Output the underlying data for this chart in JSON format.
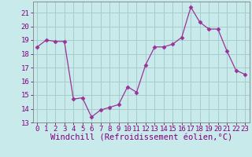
{
  "x": [
    0,
    1,
    2,
    3,
    4,
    5,
    6,
    7,
    8,
    9,
    10,
    11,
    12,
    13,
    14,
    15,
    16,
    17,
    18,
    19,
    20,
    21,
    22,
    23
  ],
  "y": [
    18.5,
    19.0,
    18.9,
    18.9,
    14.7,
    14.8,
    13.4,
    13.9,
    14.1,
    14.3,
    15.6,
    15.2,
    17.2,
    18.5,
    18.5,
    18.7,
    19.2,
    21.4,
    20.3,
    19.8,
    19.8,
    18.2,
    16.8,
    16.5
  ],
  "line_color": "#993399",
  "marker": "D",
  "marker_size": 2.5,
  "bg_color": "#c8eaea",
  "grid_color": "#a8cccc",
  "xlabel": "Windchill (Refroidissement éolien,°C)",
  "ylim": [
    13,
    21.8
  ],
  "xlim": [
    -0.5,
    23.5
  ],
  "yticks": [
    13,
    14,
    15,
    16,
    17,
    18,
    19,
    20,
    21
  ],
  "xticks": [
    0,
    1,
    2,
    3,
    4,
    5,
    6,
    7,
    8,
    9,
    10,
    11,
    12,
    13,
    14,
    15,
    16,
    17,
    18,
    19,
    20,
    21,
    22,
    23
  ],
  "tick_color": "#800080",
  "label_color": "#800080",
  "tick_fontsize": 6.5,
  "xlabel_fontsize": 7.5,
  "spine_color": "#808080"
}
